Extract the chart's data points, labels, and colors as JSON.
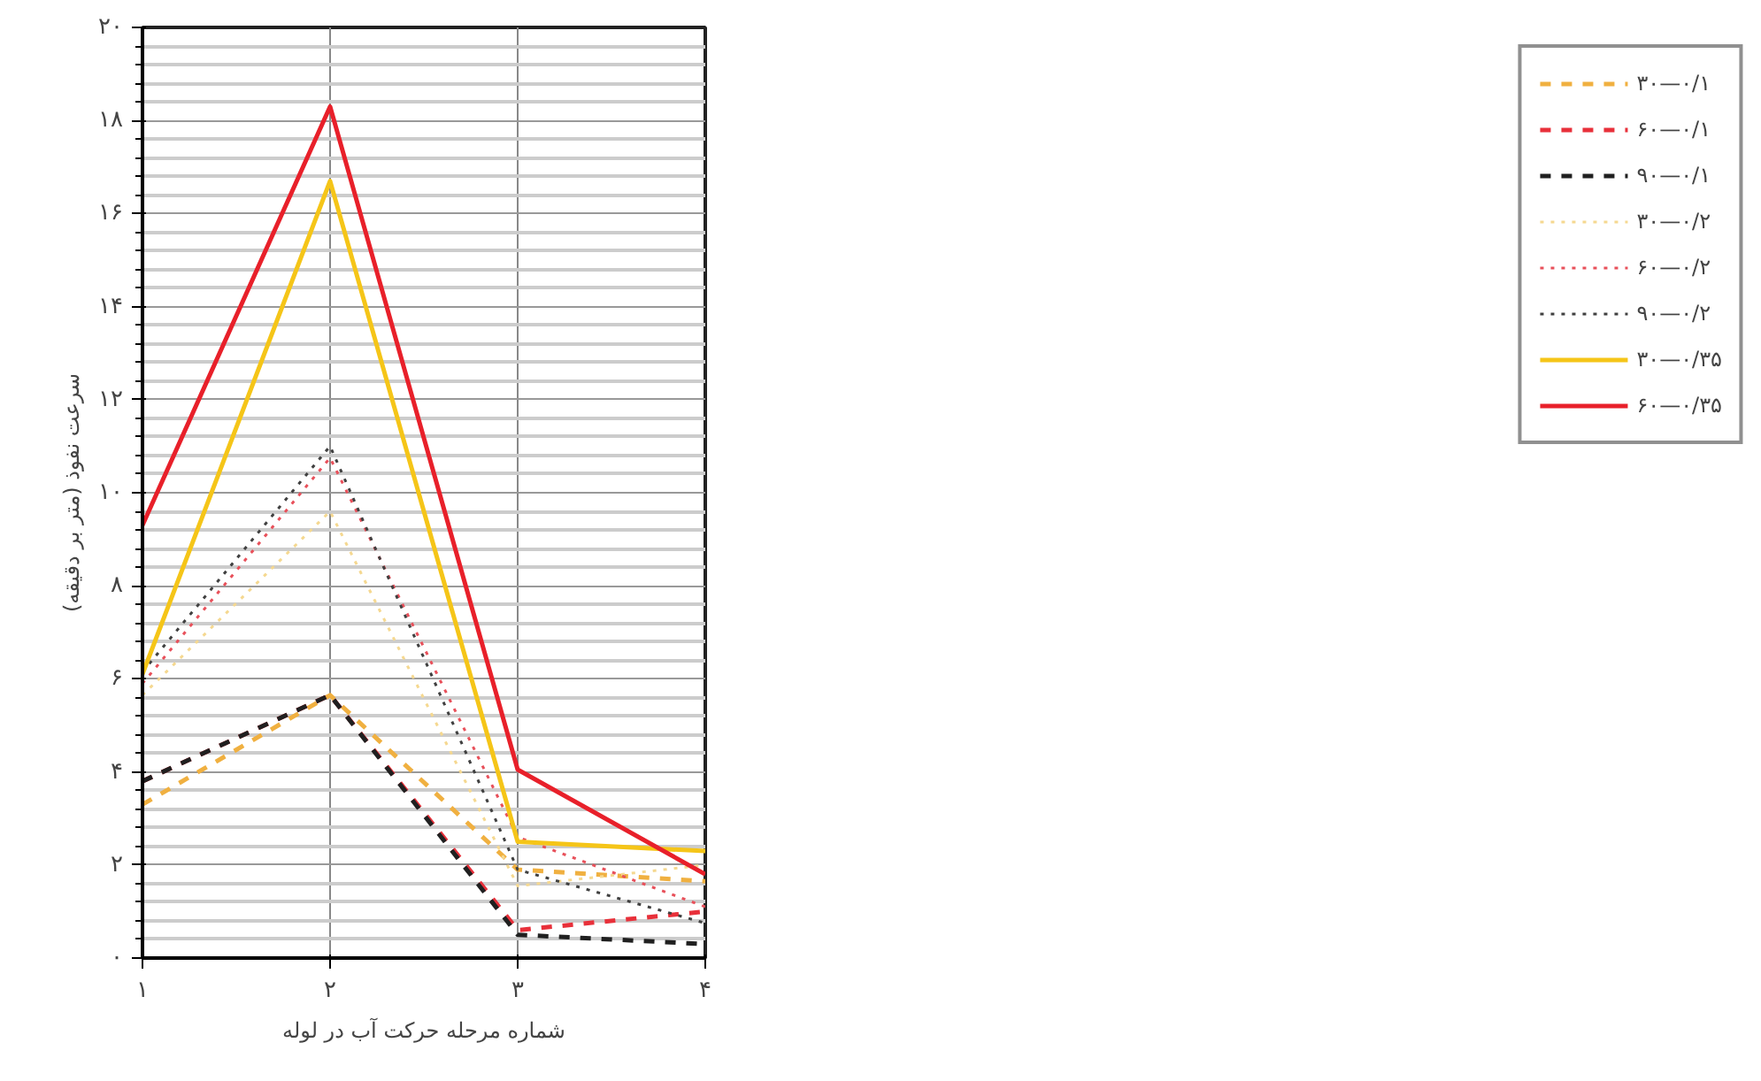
{
  "chart_data": {
    "type": "line",
    "xlabel": "شماره مرحله حرکت آب در لوله",
    "ylabel": "سرعت نفوذ (متر بر دقیقه)",
    "x": [
      1,
      2,
      3,
      4
    ],
    "xlim": [
      1,
      4
    ],
    "xticks": [
      {
        "value": 1,
        "label": "۱"
      },
      {
        "value": 2,
        "label": "۲"
      },
      {
        "value": 3,
        "label": "۳"
      },
      {
        "value": 4,
        "label": "۴"
      }
    ],
    "ylim": [
      0,
      20
    ],
    "yticks": [
      {
        "value": 0,
        "label": "۰"
      },
      {
        "value": 2,
        "label": "۲"
      },
      {
        "value": 4,
        "label": "۴"
      },
      {
        "value": 6,
        "label": "۶"
      },
      {
        "value": 8,
        "label": "۸"
      },
      {
        "value": 10,
        "label": "۱۰"
      },
      {
        "value": 12,
        "label": "۱۲"
      },
      {
        "value": 14,
        "label": "۱۴"
      },
      {
        "value": 16,
        "label": "۱۶"
      },
      {
        "value": 18,
        "label": "۱۸"
      },
      {
        "value": 20,
        "label": "۲۰"
      }
    ],
    "grid": true,
    "legend": "right",
    "marker": "none",
    "series": [
      {
        "name": "۳۰—۰/۱",
        "color": "#f0b040",
        "line_style": "dashed",
        "values": [
          3.3,
          5.65,
          1.9,
          1.65
        ]
      },
      {
        "name": "۶۰—۰/۱",
        "color": "#e8303a",
        "line_style": "dashed",
        "values": [
          3.8,
          5.65,
          0.6,
          1.0
        ]
      },
      {
        "name": "۹۰—۰/۱",
        "color": "#202020",
        "line_style": "dashed",
        "values": [
          3.8,
          5.65,
          0.5,
          0.3
        ]
      },
      {
        "name": "۳۰—۰/۲",
        "color": "#f5d890",
        "line_style": "dotted",
        "values": [
          5.65,
          9.6,
          1.55,
          2.0
        ]
      },
      {
        "name": "۶۰—۰/۲",
        "color": "#e8505a",
        "line_style": "dotted",
        "values": [
          5.9,
          10.75,
          2.6,
          1.1
        ]
      },
      {
        "name": "۹۰—۰/۲",
        "color": "#404040",
        "line_style": "dotted",
        "values": [
          6.15,
          11.0,
          1.9,
          0.75
        ]
      },
      {
        "name": "۳۰—۰/۳۵",
        "color": "#f5c518",
        "line_style": "solid",
        "values": [
          6.1,
          16.7,
          2.5,
          2.3
        ]
      },
      {
        "name": "۶۰—۰/۳۵",
        "color": "#e8202a",
        "line_style": "solid",
        "values": [
          9.3,
          18.3,
          4.05,
          1.8
        ]
      }
    ]
  }
}
